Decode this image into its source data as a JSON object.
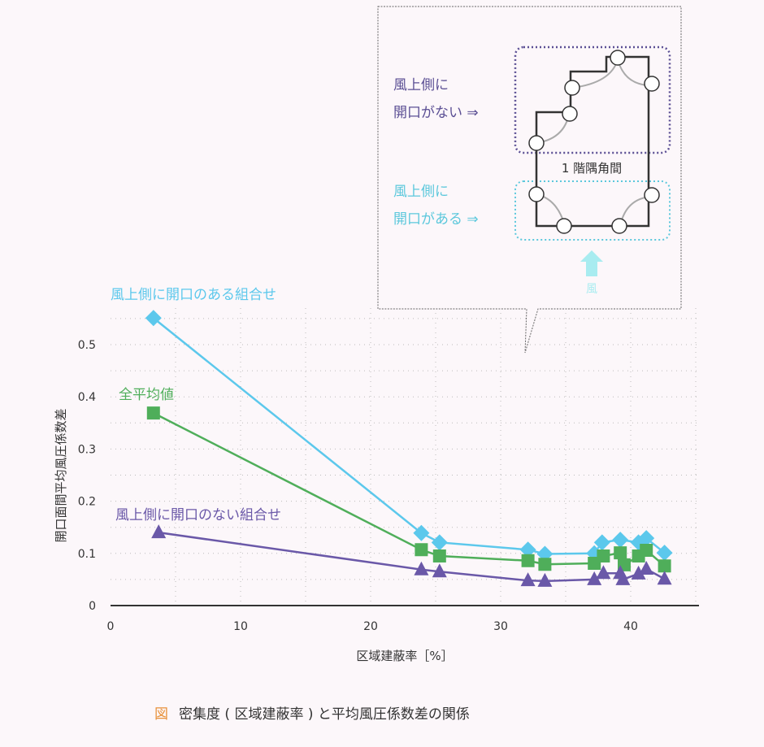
{
  "chart_data": {
    "type": "line",
    "title": "",
    "caption_marker": "図",
    "caption": "密集度 ( 区域建蔽率 ) と平均風圧係数差の関係",
    "xlabel": "区域建蔽率［%］",
    "ylabel": "開口面間平均風圧係数差",
    "xlim": [
      0,
      45
    ],
    "ylim": [
      0,
      0.55
    ],
    "xticks": [
      "0",
      "10",
      "20",
      "30",
      "40"
    ],
    "yticks": [
      "0",
      "0.1",
      "0.2",
      "0.3",
      "0.4",
      "0.5"
    ],
    "grid": "dotted",
    "series": [
      {
        "name": "風上側に開口のある組合せ",
        "marker": "diamond",
        "color": "#5cc8ec",
        "points": [
          [
            3.3,
            0.551
          ],
          [
            23.9,
            0.139
          ],
          [
            25.3,
            0.121
          ],
          [
            32.1,
            0.107
          ],
          [
            33.4,
            0.099
          ],
          [
            37.2,
            0.1
          ],
          [
            37.8,
            0.121
          ],
          [
            39.2,
            0.126
          ],
          [
            40.6,
            0.121
          ],
          [
            41.2,
            0.129
          ],
          [
            42.6,
            0.101
          ]
        ]
      },
      {
        "name": "全平均値",
        "marker": "square",
        "color": "#4fae5a",
        "points": [
          [
            3.3,
            0.369
          ],
          [
            23.9,
            0.107
          ],
          [
            25.3,
            0.095
          ],
          [
            32.1,
            0.086
          ],
          [
            33.4,
            0.079
          ],
          [
            37.2,
            0.081
          ],
          [
            37.9,
            0.095
          ],
          [
            39.2,
            0.101
          ],
          [
            39.5,
            0.078
          ],
          [
            40.6,
            0.095
          ],
          [
            41.2,
            0.106
          ],
          [
            42.6,
            0.076
          ]
        ]
      },
      {
        "name": "風上側に開口のない組合せ",
        "marker": "triangle",
        "color": "#6a58a8",
        "points": [
          [
            3.7,
            0.14
          ],
          [
            23.9,
            0.069
          ],
          [
            25.3,
            0.065
          ],
          [
            32.1,
            0.048
          ],
          [
            33.4,
            0.047
          ],
          [
            37.2,
            0.05
          ],
          [
            37.9,
            0.062
          ],
          [
            39.2,
            0.062
          ],
          [
            39.4,
            0.05
          ],
          [
            40.6,
            0.061
          ],
          [
            41.2,
            0.07
          ],
          [
            42.6,
            0.051
          ]
        ]
      }
    ]
  },
  "inset": {
    "room_label": "1 階隅角間",
    "no_opening_line1": "風上側に",
    "no_opening_line2": "開口がない ⇒",
    "with_opening_line1": "風上側に",
    "with_opening_line2": "開口がある ⇒",
    "wind_label": "風"
  }
}
